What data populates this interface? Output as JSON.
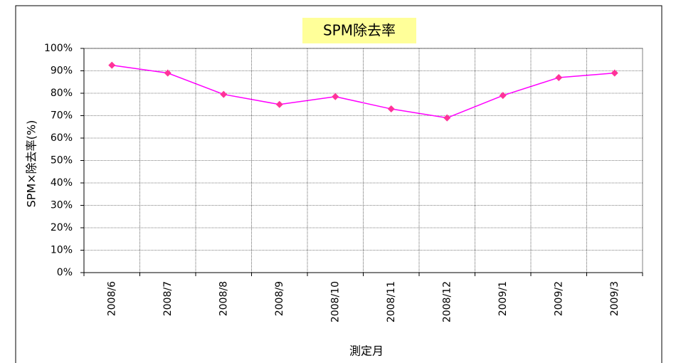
{
  "chart_data": {
    "type": "line",
    "title": "SPM除去率",
    "x_label": "測定月",
    "y_label": "SPM×除去率(%)",
    "categories": [
      "2008/6",
      "2008/7",
      "2008/8",
      "2008/9",
      "2008/10",
      "2008/11",
      "2008/12",
      "2009/1",
      "2009/2",
      "2009/3"
    ],
    "series": [
      {
        "name": "SPM除去率",
        "color": "#ff00ff",
        "marker_color": "#ff3399",
        "values": [
          92.5,
          89,
          79.5,
          75,
          78.5,
          73,
          69,
          79,
          87,
          89
        ]
      }
    ],
    "ylim": [
      0,
      100
    ],
    "yticks": [
      {
        "value": 0,
        "label": "0%"
      },
      {
        "value": 10,
        "label": "10%"
      },
      {
        "value": 20,
        "label": "20%"
      },
      {
        "value": 30,
        "label": "30%"
      },
      {
        "value": 40,
        "label": "40%"
      },
      {
        "value": 50,
        "label": "50%"
      },
      {
        "value": 60,
        "label": "60%"
      },
      {
        "value": 70,
        "label": "70%"
      },
      {
        "value": 80,
        "label": "80%"
      },
      {
        "value": 90,
        "label": "90%"
      },
      {
        "value": 100,
        "label": "100%"
      }
    ],
    "grid": true,
    "legend": false
  }
}
